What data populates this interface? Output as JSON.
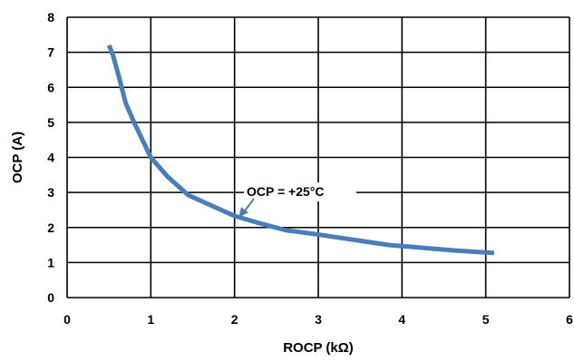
{
  "chart_data": {
    "type": "line",
    "title": "",
    "xlabel": "ROCP (kΩ)",
    "ylabel": "OCP (A)",
    "xlim": [
      0,
      6
    ],
    "ylim": [
      0,
      8
    ],
    "x_ticks": [
      0,
      1,
      2,
      3,
      4,
      5,
      6
    ],
    "y_ticks": [
      0,
      1,
      2,
      3,
      4,
      5,
      6,
      7,
      8
    ],
    "grid": true,
    "legend": "none",
    "series": [
      {
        "x": [
          0.5,
          0.55,
          0.62,
          0.7,
          0.8,
          0.9,
          1.0,
          1.2,
          1.45,
          1.7,
          2.0,
          2.3,
          2.6,
          3.0,
          3.5,
          3.85,
          4.2,
          4.6,
          5.1
        ],
        "y": [
          7.2,
          6.9,
          6.3,
          5.55,
          5.0,
          4.5,
          4.0,
          3.45,
          2.92,
          2.65,
          2.33,
          2.12,
          1.93,
          1.8,
          1.62,
          1.5,
          1.43,
          1.35,
          1.27
        ],
        "color": "#4a7ebb"
      }
    ],
    "annotations": [
      {
        "text": "OCP = +25°C",
        "point_x": 2.05,
        "point_y": 2.28
      }
    ]
  }
}
